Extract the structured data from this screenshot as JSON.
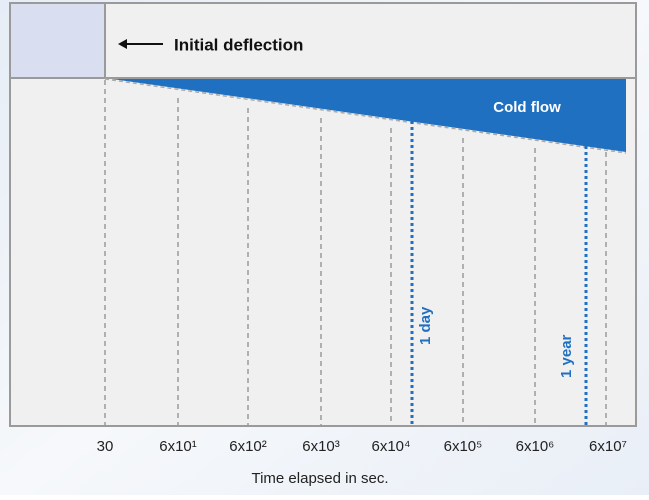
{
  "diagram": {
    "top_label": "Initial deflection",
    "region_label": "Cold flow",
    "markers": [
      "1 day",
      "1 year"
    ],
    "x_axis": {
      "ticks": [
        "30",
        "6x10¹",
        "6x10²",
        "6x10³",
        "6x10⁴",
        "6x10⁵",
        "6x10⁶",
        "6x10⁷"
      ],
      "title": "Time elapsed in sec."
    }
  }
}
